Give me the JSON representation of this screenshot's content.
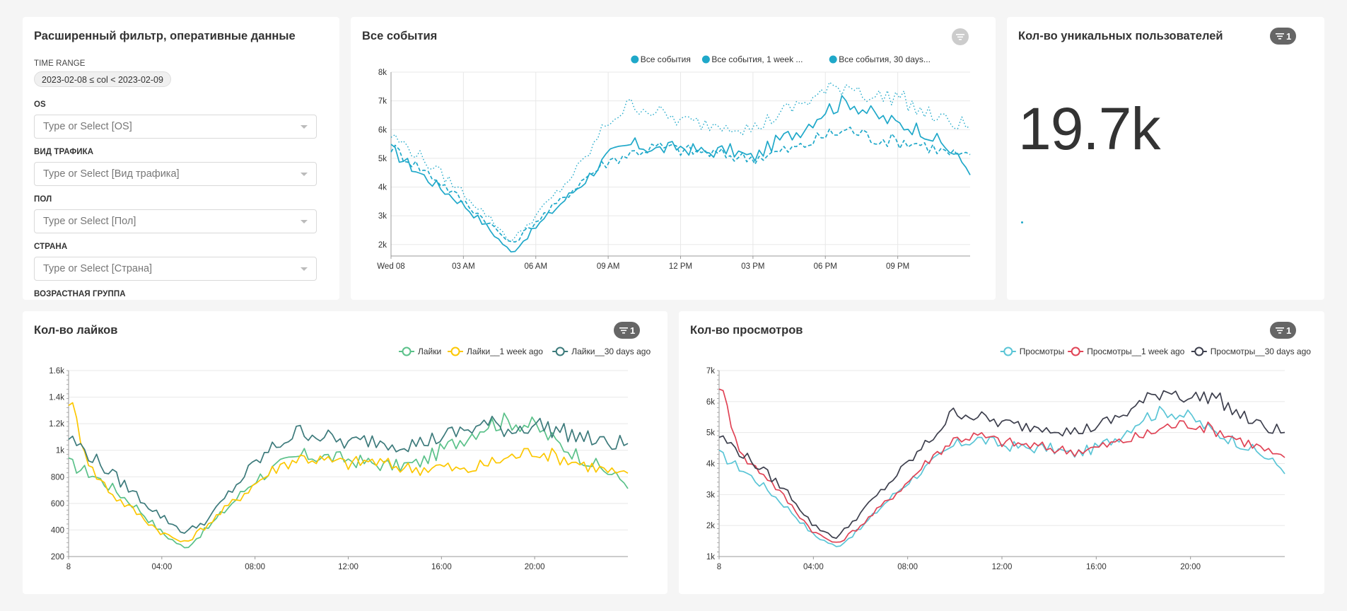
{
  "filter_panel": {
    "title": "Расширенный фильтр, оперативные данные",
    "time_range_label": "TIME RANGE",
    "time_range_value": "2023-02-08 ≤ col < 2023-02-09",
    "filters": [
      {
        "label": "OS",
        "placeholder": "Type or Select [OS]"
      },
      {
        "label": "ВИД ТРАФИКА",
        "placeholder": "Type or Select [Вид трафика]"
      },
      {
        "label": "ПОЛ",
        "placeholder": "Type or Select [Пол]"
      },
      {
        "label": "СТРАНА",
        "placeholder": "Type or Select [Страна]"
      }
    ],
    "next_label": "ВОЗРАСТНАЯ ГРУППА"
  },
  "events_card": {
    "title": "Все события"
  },
  "unique_users_card": {
    "title": "Кол-во уникальных пользователей",
    "badge": "1",
    "value": "19.7k"
  },
  "likes_card": {
    "title": "Кол-во лайков",
    "badge": "1"
  },
  "views_card": {
    "title": "Кол-во просмотров",
    "badge": "1"
  },
  "chart_data": [
    {
      "type": "line",
      "id": "events",
      "title": "Все события",
      "x_ticks": [
        "Wed 08",
        "03 AM",
        "06 AM",
        "09 AM",
        "12 PM",
        "03 PM",
        "06 PM",
        "09 PM"
      ],
      "y_ticks": [
        "2k",
        "3k",
        "4k",
        "5k",
        "6k",
        "7k",
        "8k"
      ],
      "ylim": [
        1600,
        8000
      ],
      "x_hours": [
        0,
        1,
        2,
        3,
        4,
        5,
        6,
        7,
        8,
        9,
        10,
        11,
        12,
        13,
        14,
        15,
        16,
        17,
        18,
        19,
        20,
        21,
        22,
        23,
        24
      ],
      "legend_position": "top-right",
      "series": [
        {
          "name": "Все события",
          "style": "solid",
          "color": "#1fa8c9",
          "values": [
            5300,
            4600,
            4000,
            3400,
            2600,
            1700,
            2600,
            3400,
            4200,
            5100,
            5500,
            5300,
            5400,
            5200,
            5300,
            5000,
            5600,
            6000,
            6700,
            7000,
            6500,
            6200,
            6000,
            5400,
            4600
          ]
        },
        {
          "name": "Все события, 1 week ...",
          "style": "dashed",
          "color": "#1fa8c9",
          "values": [
            5400,
            4800,
            4200,
            3500,
            2800,
            2000,
            2800,
            3500,
            4300,
            4900,
            5200,
            5400,
            5300,
            5200,
            5100,
            5000,
            5200,
            5400,
            5800,
            6000,
            5700,
            5600,
            5500,
            5200,
            5000
          ]
        },
        {
          "name": "Все события, 30 days...",
          "style": "dotted",
          "color": "#1fa8c9",
          "values": [
            5800,
            5200,
            4500,
            3800,
            3000,
            2100,
            3000,
            3900,
            4900,
            6300,
            6900,
            6600,
            6300,
            6200,
            6200,
            6000,
            6500,
            6900,
            7300,
            7600,
            7100,
            7200,
            6600,
            6300,
            6100
          ]
        }
      ]
    },
    {
      "type": "line",
      "id": "likes",
      "title": "Кол-во лайков",
      "x_ticks": [
        "8",
        "04:00",
        "08:00",
        "12:00",
        "16:00",
        "20:00"
      ],
      "y_ticks": [
        "200",
        "400",
        "600",
        "800",
        "1k",
        "1.2k",
        "1.4k",
        "1.6k"
      ],
      "ylim": [
        200,
        1600
      ],
      "x_hours": [
        0,
        1,
        2,
        3,
        4,
        5,
        6,
        7,
        8,
        9,
        10,
        11,
        12,
        13,
        14,
        15,
        16,
        17,
        18,
        19,
        20,
        21,
        22,
        23,
        24
      ],
      "legend_position": "top-right",
      "series": [
        {
          "name": "Лайки",
          "color": "#5ac189",
          "values": [
            900,
            820,
            700,
            560,
            380,
            260,
            420,
            600,
            780,
            880,
            960,
            950,
            930,
            900,
            880,
            900,
            1000,
            1100,
            1200,
            1220,
            1180,
            1050,
            950,
            850,
            750
          ]
        },
        {
          "name": "Лайки__1 week ago",
          "color": "#fcc700",
          "values": [
            1400,
            850,
            650,
            520,
            380,
            300,
            450,
            600,
            750,
            880,
            950,
            920,
            900,
            920,
            880,
            860,
            880,
            840,
            900,
            950,
            1000,
            950,
            900,
            850,
            800
          ]
        },
        {
          "name": "Лайки__30 days ago",
          "color": "#3c7a7b",
          "values": [
            1100,
            950,
            800,
            650,
            500,
            380,
            480,
            700,
            900,
            1050,
            1150,
            1100,
            1050,
            1080,
            1050,
            1050,
            1100,
            1150,
            1200,
            1150,
            1200,
            1150,
            1100,
            1050,
            1050
          ]
        }
      ]
    },
    {
      "type": "line",
      "id": "views",
      "title": "Кол-во просмотров",
      "x_ticks": [
        "8",
        "04:00",
        "08:00",
        "12:00",
        "16:00",
        "20:00"
      ],
      "y_ticks": [
        "1k",
        "2k",
        "3k",
        "4k",
        "5k",
        "6k",
        "7k"
      ],
      "ylim": [
        1000,
        7000
      ],
      "x_hours": [
        0,
        1,
        2,
        3,
        4,
        5,
        6,
        7,
        8,
        9,
        10,
        11,
        12,
        13,
        14,
        15,
        16,
        17,
        18,
        19,
        20,
        21,
        22,
        23,
        24
      ],
      "legend_position": "top-right",
      "series": [
        {
          "name": "Просмотры",
          "color": "#5ac5d6",
          "values": [
            4300,
            3800,
            3200,
            2500,
            1700,
            1300,
            1900,
            2700,
            3400,
            4000,
            4600,
            4800,
            4600,
            4500,
            4500,
            4300,
            4500,
            4900,
            5500,
            5700,
            5500,
            5000,
            4700,
            4300,
            3800
          ]
        },
        {
          "name": "Просмотры__1 week ago",
          "color": "#e04355",
          "values": [
            6600,
            4200,
            3600,
            2700,
            1800,
            1400,
            2000,
            2700,
            3400,
            4200,
            4800,
            4900,
            4700,
            4600,
            4500,
            4400,
            4500,
            4700,
            4900,
            5200,
            5300,
            5100,
            4800,
            4500,
            4100
          ]
        },
        {
          "name": "Просмотры__30 days ago",
          "color": "#3d3f4d",
          "values": [
            4900,
            4300,
            3700,
            3000,
            2000,
            1600,
            2400,
            3200,
            4000,
            4800,
            5700,
            5500,
            5300,
            5200,
            5200,
            5000,
            5200,
            5500,
            6000,
            6400,
            6100,
            6200,
            5600,
            5200,
            5000
          ]
        }
      ]
    }
  ]
}
